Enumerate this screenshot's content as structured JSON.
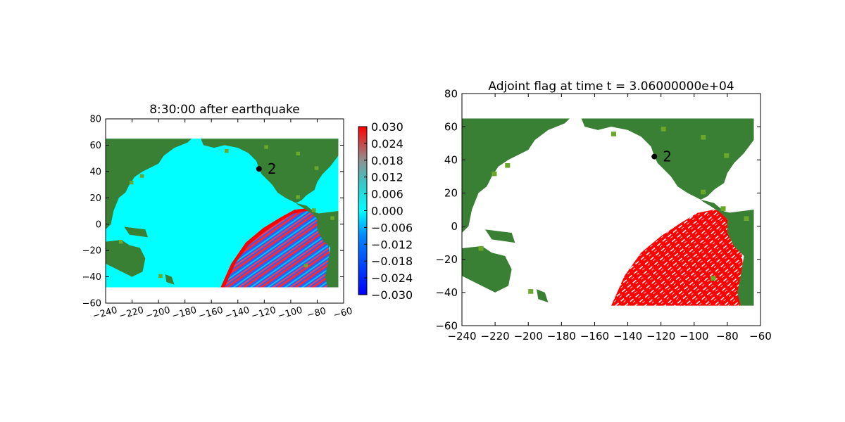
{
  "chart_data": [
    {
      "type": "heatmap",
      "title": "8:30:00 after earthquake",
      "xlabel": "",
      "ylabel": "",
      "xlim": [
        -240,
        -60
      ],
      "ylim": [
        -60,
        80
      ],
      "xticks": [
        -240,
        -220,
        -200,
        -180,
        -160,
        -140,
        -120,
        -100,
        -80,
        -60
      ],
      "yticks": [
        -60,
        -40,
        -20,
        0,
        20,
        40,
        60,
        80
      ],
      "xtick_labels": [
        "−240",
        "−220",
        "−200",
        "−180",
        "−160",
        "−140",
        "−120",
        "−100",
        "−80",
        "−60"
      ],
      "ytick_labels": [
        "−60",
        "−40",
        "−20",
        "0",
        "20",
        "40",
        "60",
        "80"
      ],
      "data_extent": {
        "x": [
          -240,
          -64
        ],
        "y": [
          -48,
          65
        ]
      },
      "grid": false,
      "colorbar": {
        "vmin": -0.03,
        "vmax": 0.03,
        "ticks": [
          0.03,
          0.024,
          0.018,
          0.012,
          0.006,
          0.0,
          -0.006,
          -0.012,
          -0.018,
          -0.024,
          -0.03
        ],
        "tick_labels": [
          "0.030",
          "0.024",
          "0.018",
          "0.012",
          "0.006",
          "0.000",
          "−0.006",
          "−0.012",
          "−0.018",
          "−0.024",
          "−0.030"
        ],
        "colors": [
          "#0000ff",
          "#00ffff",
          "#808080",
          "#ff0000"
        ]
      },
      "colors": {
        "land": "#3a8034",
        "land_light": "#6aa82b",
        "water": "#00ffff",
        "wave_pos": "#ff0000",
        "wave_neg": "#0000ff"
      },
      "point": {
        "x": -124,
        "y": 42,
        "label": "2"
      }
    },
    {
      "type": "heatmap",
      "title": "Adjoint flag at time t = 3.06000000e+04",
      "xlabel": "",
      "ylabel": "",
      "xlim": [
        -240,
        -60
      ],
      "ylim": [
        -60,
        80
      ],
      "xticks": [
        -240,
        -220,
        -200,
        -180,
        -160,
        -140,
        -120,
        -100,
        -80,
        -60
      ],
      "yticks": [
        -60,
        -40,
        -20,
        0,
        20,
        40,
        60,
        80
      ],
      "xtick_labels": [
        "−240",
        "−220",
        "−200",
        "−180",
        "−160",
        "−140",
        "−120",
        "−100",
        "−80",
        "−60"
      ],
      "ytick_labels": [
        "−60",
        "−40",
        "−20",
        "0",
        "20",
        "40",
        "60",
        "80"
      ],
      "data_extent": {
        "x": [
          -240,
          -64
        ],
        "y": [
          -48,
          65
        ]
      },
      "grid": false,
      "colors": {
        "land": "#3a8034",
        "land_light": "#6aa82b",
        "flag": "#ff0000",
        "background": "#ffffff"
      },
      "point": {
        "x": -124,
        "y": 42,
        "label": "2"
      }
    }
  ]
}
